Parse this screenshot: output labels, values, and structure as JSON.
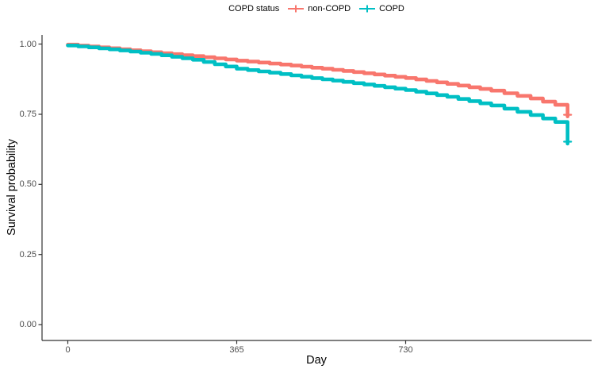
{
  "legend": {
    "title": "COPD status",
    "items": [
      {
        "label": "non-COPD",
        "color": "#F8766D"
      },
      {
        "label": "COPD",
        "color": "#00BFC4"
      }
    ]
  },
  "axes": {
    "x": {
      "title": "Day",
      "ticks": [
        "0",
        "365",
        "730"
      ]
    },
    "y": {
      "title": "Survival probability",
      "ticks": [
        "1.00",
        "0.75",
        "0.50",
        "0.25",
        "0.00"
      ]
    }
  },
  "chart_data": {
    "type": "line",
    "subtype": "kaplan-meier-step",
    "title": "",
    "xlabel": "Day",
    "ylabel": "Survival probability",
    "xlim": [
      0,
      1130
    ],
    "ylim": [
      0,
      1.0
    ],
    "xticks": [
      0,
      365,
      730
    ],
    "yticks": [
      1.0,
      0.75,
      0.5,
      0.25,
      0.0
    ],
    "grid": false,
    "legend_position": "top-center",
    "legend_title": "COPD status",
    "series": [
      {
        "name": "non-COPD",
        "color": "#F8766D",
        "points": [
          [
            0,
            0.998
          ],
          [
            90,
            0.985
          ],
          [
            180,
            0.971
          ],
          [
            270,
            0.957
          ],
          [
            365,
            0.941
          ],
          [
            460,
            0.927
          ],
          [
            550,
            0.912
          ],
          [
            640,
            0.896
          ],
          [
            730,
            0.879
          ],
          [
            820,
            0.858
          ],
          [
            915,
            0.834
          ],
          [
            1000,
            0.806
          ],
          [
            1080,
            0.772
          ],
          [
            1080,
            0.742
          ]
        ],
        "censor_mark": [
          1080,
          0.748
        ]
      },
      {
        "name": "COPD",
        "color": "#00BFC4",
        "points": [
          [
            0,
            0.995
          ],
          [
            90,
            0.981
          ],
          [
            180,
            0.965
          ],
          [
            270,
            0.944
          ],
          [
            365,
            0.912
          ],
          [
            460,
            0.893
          ],
          [
            550,
            0.874
          ],
          [
            640,
            0.856
          ],
          [
            730,
            0.836
          ],
          [
            820,
            0.812
          ],
          [
            915,
            0.781
          ],
          [
            1000,
            0.747
          ],
          [
            1080,
            0.71
          ],
          [
            1080,
            0.645
          ]
        ],
        "censor_mark": [
          1080,
          0.652
        ]
      }
    ]
  }
}
